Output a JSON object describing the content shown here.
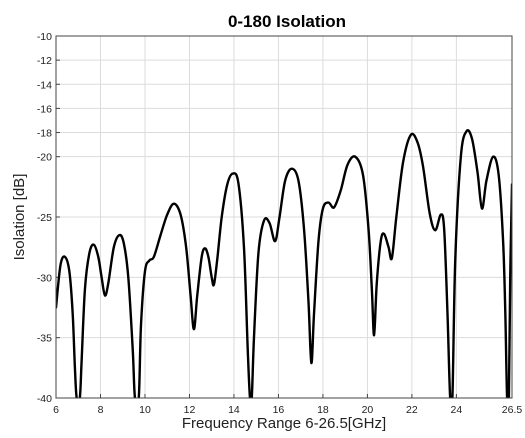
{
  "chart_data": {
    "type": "line",
    "title": "0-180 Isolation",
    "xlabel": "Frequency Range 6-26.5[GHz]",
    "ylabel": "Isolation [dB]",
    "xlim": [
      6,
      26.5
    ],
    "ylim": [
      -40,
      -10
    ],
    "grid": true,
    "x_ticks": [
      6,
      8,
      10,
      12,
      14,
      16,
      18,
      20,
      22,
      24,
      26.5
    ],
    "x_tick_labels": [
      "6",
      "8",
      "10",
      "12",
      "14",
      "16",
      "18",
      "20",
      "22",
      "24",
      "26.5"
    ],
    "y_ticks": [
      -40,
      -35,
      -30,
      -25,
      -20,
      -18,
      -16,
      -14,
      -12,
      -10
    ],
    "y_tick_labels": [
      "-40",
      "-35",
      "-30",
      "-25",
      "-20",
      "-18",
      "-16",
      "-14",
      "-12",
      "-10"
    ],
    "series": [
      {
        "color": "#000000",
        "points": [
          [
            6.0,
            -32.5
          ],
          [
            6.2,
            -29.0
          ],
          [
            6.4,
            -28.3
          ],
          [
            6.6,
            -29.5
          ],
          [
            6.75,
            -33.0
          ],
          [
            6.85,
            -37.5
          ],
          [
            6.93,
            -40.0
          ],
          [
            7.07,
            -40.0
          ],
          [
            7.15,
            -37.0
          ],
          [
            7.3,
            -31.0
          ],
          [
            7.5,
            -28.0
          ],
          [
            7.7,
            -27.3
          ],
          [
            7.9,
            -28.3
          ],
          [
            8.05,
            -30.0
          ],
          [
            8.2,
            -31.5
          ],
          [
            8.35,
            -30.5
          ],
          [
            8.6,
            -27.5
          ],
          [
            8.85,
            -26.5
          ],
          [
            9.05,
            -27.2
          ],
          [
            9.25,
            -30.0
          ],
          [
            9.45,
            -36.0
          ],
          [
            9.55,
            -40.0
          ],
          [
            9.72,
            -40.0
          ],
          [
            9.82,
            -34.0
          ],
          [
            10.0,
            -29.5
          ],
          [
            10.2,
            -28.6
          ],
          [
            10.4,
            -28.3
          ],
          [
            10.7,
            -26.5
          ],
          [
            11.0,
            -24.8
          ],
          [
            11.3,
            -23.9
          ],
          [
            11.6,
            -24.8
          ],
          [
            11.85,
            -27.5
          ],
          [
            12.05,
            -31.5
          ],
          [
            12.2,
            -34.3
          ],
          [
            12.35,
            -31.5
          ],
          [
            12.55,
            -28.3
          ],
          [
            12.7,
            -27.6
          ],
          [
            12.85,
            -28.3
          ],
          [
            13.0,
            -30.0
          ],
          [
            13.1,
            -30.6
          ],
          [
            13.25,
            -28.5
          ],
          [
            13.45,
            -25.0
          ],
          [
            13.7,
            -22.3
          ],
          [
            13.95,
            -21.4
          ],
          [
            14.2,
            -22.2
          ],
          [
            14.45,
            -27.5
          ],
          [
            14.62,
            -36.0
          ],
          [
            14.72,
            -40.0
          ],
          [
            14.8,
            -40.0
          ],
          [
            14.9,
            -35.0
          ],
          [
            15.1,
            -28.0
          ],
          [
            15.35,
            -25.3
          ],
          [
            15.6,
            -25.5
          ],
          [
            15.85,
            -27.0
          ],
          [
            16.05,
            -25.0
          ],
          [
            16.3,
            -22.0
          ],
          [
            16.6,
            -21.0
          ],
          [
            16.9,
            -22.0
          ],
          [
            17.15,
            -26.0
          ],
          [
            17.35,
            -32.0
          ],
          [
            17.48,
            -37.1
          ],
          [
            17.6,
            -33.0
          ],
          [
            17.8,
            -27.0
          ],
          [
            18.0,
            -24.3
          ],
          [
            18.25,
            -23.8
          ],
          [
            18.5,
            -24.2
          ],
          [
            18.8,
            -22.8
          ],
          [
            19.1,
            -20.7
          ],
          [
            19.45,
            -20.0
          ],
          [
            19.8,
            -21.5
          ],
          [
            20.05,
            -26.0
          ],
          [
            20.2,
            -31.0
          ],
          [
            20.3,
            -34.8
          ],
          [
            20.42,
            -30.5
          ],
          [
            20.6,
            -27.0
          ],
          [
            20.75,
            -26.4
          ],
          [
            20.95,
            -27.5
          ],
          [
            21.1,
            -28.4
          ],
          [
            21.3,
            -25.0
          ],
          [
            21.6,
            -20.5
          ],
          [
            21.95,
            -18.2
          ],
          [
            22.25,
            -18.8
          ],
          [
            22.5,
            -20.8
          ],
          [
            22.8,
            -24.7
          ],
          [
            23.05,
            -26.1
          ],
          [
            23.3,
            -24.8
          ],
          [
            23.45,
            -26.0
          ],
          [
            23.6,
            -33.0
          ],
          [
            23.72,
            -40.0
          ],
          [
            23.82,
            -40.0
          ],
          [
            23.95,
            -28.5
          ],
          [
            24.2,
            -20.0
          ],
          [
            24.45,
            -17.9
          ],
          [
            24.7,
            -18.5
          ],
          [
            24.95,
            -21.3
          ],
          [
            25.15,
            -24.3
          ],
          [
            25.35,
            -22.0
          ],
          [
            25.65,
            -20.0
          ],
          [
            25.9,
            -21.5
          ],
          [
            26.1,
            -27.0
          ],
          [
            26.2,
            -33.0
          ],
          [
            26.28,
            -40.0
          ],
          [
            26.36,
            -40.0
          ],
          [
            26.42,
            -30.0
          ],
          [
            26.5,
            -22.3
          ]
        ]
      }
    ]
  }
}
